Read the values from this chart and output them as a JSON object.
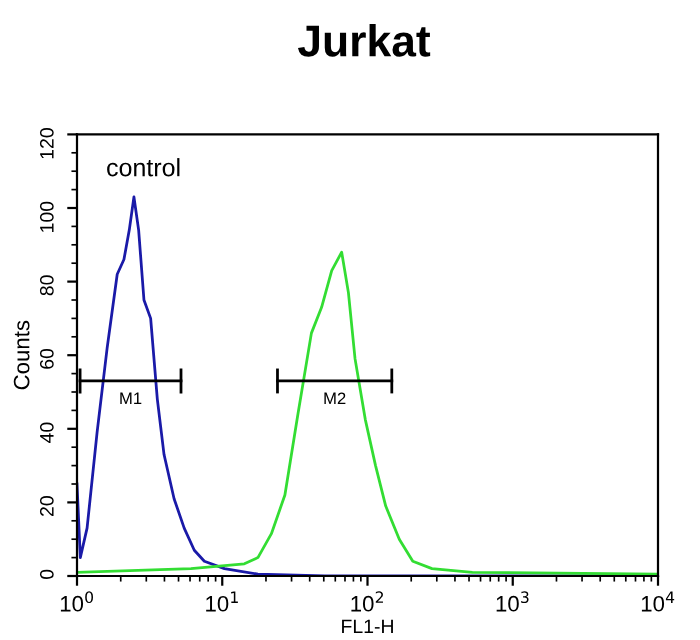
{
  "chart_data": {
    "type": "line",
    "title": "Jurkat",
    "xlabel": "FL1-H",
    "ylabel": "Counts",
    "log": "x",
    "xlim": [
      1,
      10000
    ],
    "ylim": [
      0,
      120
    ],
    "xticks": [
      {
        "value": 1,
        "label": "10$^{0}$"
      },
      {
        "value": 10,
        "label": "10$^{1}$"
      },
      {
        "value": 100,
        "label": "10$^{2}$"
      },
      {
        "value": 1000,
        "label": "10$^{3}$"
      },
      {
        "value": 10000,
        "label": "10$^{4}$"
      }
    ],
    "yticks": [
      0,
      20,
      40,
      60,
      80,
      100,
      120
    ],
    "grid": false,
    "legend": false,
    "marker": "none",
    "line_style": "solid",
    "annotations": [
      "control"
    ],
    "series": [
      {
        "color": "#1a1aa8",
        "x": [
          1.0,
          1.054,
          1.173,
          1.375,
          1.613,
          1.892,
          2.104,
          2.29,
          2.466,
          2.657,
          2.891,
          3.214,
          3.574,
          3.974,
          4.66,
          5.47,
          6.42,
          7.53,
          10.35,
          17.6,
          50.9,
          10000
        ],
        "values": [
          25,
          5,
          13,
          39,
          62,
          82,
          86,
          94,
          103,
          94,
          75,
          70,
          48,
          33,
          21,
          13,
          7,
          4,
          2,
          0.5,
          0,
          0
        ]
      },
      {
        "color": "#33dd33",
        "x": [
          1.0,
          6.09,
          14.2,
          17.6,
          21.8,
          27.0,
          33.2,
          41.1,
          48.3,
          56.7,
          66.4,
          73.9,
          82.1,
          96.6,
          113.6,
          133.5,
          165.5,
          205,
          278,
          527,
          10000
        ],
        "values": [
          1,
          2,
          3.3,
          5,
          11.5,
          22,
          44,
          66,
          73,
          83,
          88,
          77,
          59,
          42.5,
          30,
          19,
          10,
          4,
          2,
          1,
          0.5
        ]
      },
      {
        "type": "line",
        "name": "M1",
        "color": "#000000",
        "x": [
          1.05,
          5.2
        ],
        "values": [
          53,
          53
        ]
      },
      {
        "type": "line",
        "name": "M2",
        "color": "#000000",
        "x": [
          24,
          147
        ],
        "values": [
          53,
          53
        ]
      }
    ]
  }
}
